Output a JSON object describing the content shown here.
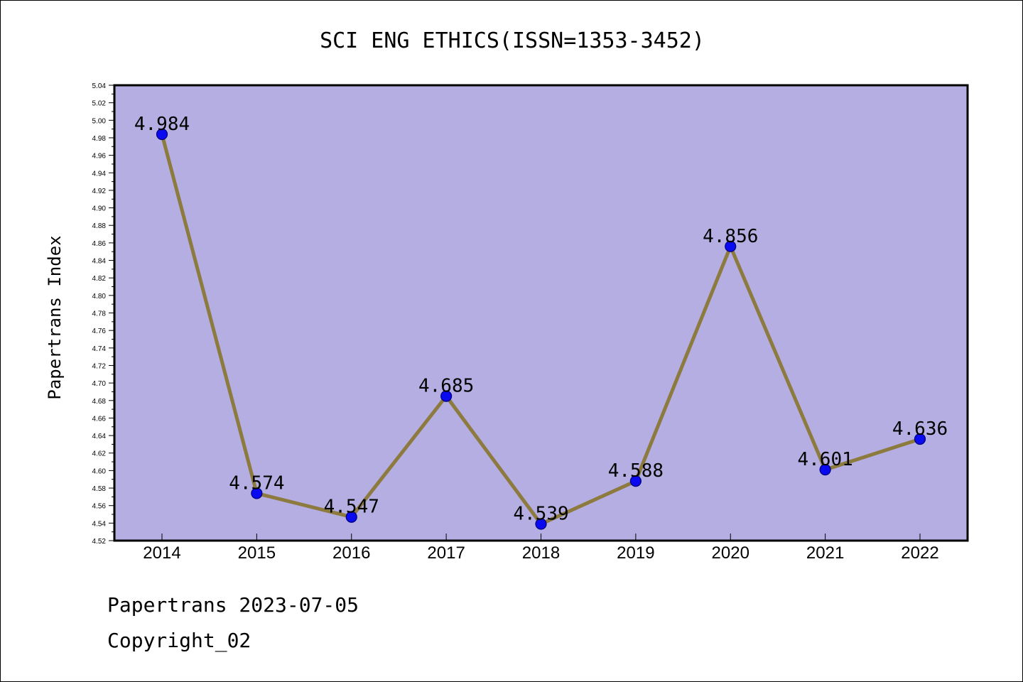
{
  "chart_data": {
    "type": "line",
    "title": "SCI ENG ETHICS(ISSN=1353-3452)",
    "ylabel": "Papertrans Index",
    "xlabel": "",
    "categories": [
      "2014",
      "2015",
      "2016",
      "2017",
      "2018",
      "2019",
      "2020",
      "2021",
      "2022"
    ],
    "values": [
      4.984,
      4.574,
      4.547,
      4.685,
      4.539,
      4.588,
      4.856,
      4.601,
      4.636
    ],
    "data_labels": [
      "4.984",
      "4.574",
      "4.547",
      "4.685",
      "4.539",
      "4.588",
      "4.856",
      "4.601",
      "4.636"
    ],
    "ylim": [
      4.52,
      5.04
    ],
    "yticks": [
      "4.52",
      "4.54",
      "4.56",
      "4.58",
      "4.60",
      "4.62",
      "4.64",
      "4.66",
      "4.68",
      "4.70",
      "4.72",
      "4.74",
      "4.76",
      "4.78",
      "4.80",
      "4.82",
      "4.84",
      "4.86",
      "4.88",
      "4.90",
      "4.92",
      "4.94",
      "4.96",
      "4.98",
      "5.00",
      "5.02",
      "5.04"
    ],
    "grid": false,
    "colors": {
      "plot_background": "#b4aee2",
      "line": "#8c7a3e",
      "marker": "#0a0af0",
      "marker_edge": "#00007a"
    }
  },
  "footer": {
    "line1": "Papertrans 2023-07-05",
    "line2": "Copyright_02"
  }
}
